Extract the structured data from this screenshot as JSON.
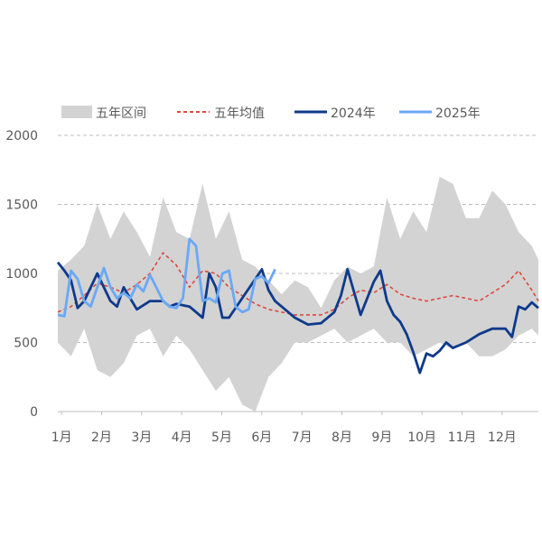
{
  "legend": {
    "range_label": "五年区间",
    "mean_label": "五年均值",
    "y2024_label": "2024年",
    "y2025_label": "2025年"
  },
  "colors": {
    "range_fill": "#d3d3d3",
    "mean_line": "#d94a3d",
    "y2024_line": "#0f3a8a",
    "y2025_line": "#6aa8f5",
    "grid": "#bdbdbd",
    "axis_text": "#595959"
  },
  "chart_data": {
    "type": "line",
    "title": "",
    "xlabel": "",
    "ylabel": "",
    "ylim": [
      0,
      2000
    ],
    "xlim": [
      0,
      365
    ],
    "y_ticks": [
      "0",
      "500",
      "1000",
      "1500",
      "2000"
    ],
    "x_tick_labels": [
      "1月",
      "2月",
      "3月",
      "4月",
      "5月",
      "6月",
      "7月",
      "8月",
      "9月",
      "10月",
      "11月",
      "12月"
    ],
    "grid": "horizontal-dashed",
    "legend_position": "top",
    "range_band": {
      "name": "五年区间",
      "x": [
        0,
        10,
        20,
        30,
        40,
        50,
        60,
        70,
        80,
        90,
        100,
        110,
        120,
        130,
        140,
        150,
        160,
        170,
        180,
        190,
        200,
        210,
        220,
        230,
        240,
        250,
        260,
        270,
        280,
        290,
        300,
        310,
        320,
        330,
        340,
        350,
        360,
        365
      ],
      "upper": [
        1020,
        1100,
        1200,
        1500,
        1250,
        1450,
        1300,
        1120,
        1550,
        1300,
        1250,
        1650,
        1250,
        1450,
        1100,
        1050,
        950,
        850,
        950,
        900,
        750,
        950,
        1050,
        1000,
        1050,
        1550,
        1250,
        1450,
        1300,
        1700,
        1650,
        1400,
        1400,
        1600,
        1500,
        1300,
        1200,
        1100
      ],
      "lower": [
        500,
        400,
        600,
        300,
        250,
        350,
        550,
        600,
        400,
        550,
        450,
        300,
        150,
        250,
        50,
        0,
        250,
        350,
        500,
        500,
        550,
        600,
        500,
        550,
        600,
        500,
        500,
        400,
        450,
        500,
        450,
        500,
        400,
        400,
        450,
        550,
        600,
        550
      ]
    },
    "series": [
      {
        "name": "五年均值",
        "style": "dashed",
        "x": [
          0,
          10,
          20,
          30,
          40,
          50,
          60,
          70,
          80,
          90,
          100,
          110,
          120,
          130,
          140,
          150,
          160,
          170,
          180,
          190,
          200,
          210,
          220,
          230,
          240,
          250,
          260,
          270,
          280,
          290,
          300,
          310,
          320,
          330,
          340,
          350,
          360,
          365
        ],
        "values": [
          720,
          760,
          840,
          930,
          900,
          860,
          920,
          1000,
          1150,
          1060,
          900,
          1020,
          1000,
          900,
          840,
          780,
          740,
          720,
          700,
          700,
          700,
          740,
          820,
          880,
          860,
          920,
          850,
          820,
          800,
          820,
          840,
          820,
          800,
          860,
          920,
          1020,
          880,
          800
        ]
      },
      {
        "name": "2024年",
        "style": "solid",
        "x": [
          0,
          5,
          10,
          15,
          20,
          30,
          40,
          45,
          50,
          60,
          70,
          80,
          85,
          90,
          100,
          110,
          115,
          120,
          125,
          130,
          140,
          150,
          155,
          160,
          165,
          170,
          180,
          190,
          200,
          210,
          215,
          220,
          230,
          240,
          245,
          250,
          255,
          260,
          265,
          270,
          275,
          280,
          285,
          290,
          295,
          300,
          310,
          320,
          330,
          340,
          345,
          350,
          355,
          360,
          365
        ],
        "values": [
          1080,
          1020,
          950,
          750,
          800,
          1000,
          800,
          760,
          900,
          740,
          800,
          800,
          760,
          780,
          760,
          680,
          1000,
          900,
          680,
          680,
          820,
          960,
          1030,
          880,
          800,
          760,
          680,
          630,
          640,
          720,
          840,
          1030,
          700,
          940,
          1020,
          800,
          700,
          650,
          560,
          430,
          280,
          420,
          400,
          440,
          500,
          460,
          500,
          560,
          600,
          600,
          540,
          760,
          740,
          790,
          750
        ]
      },
      {
        "name": "2025年",
        "style": "solid",
        "x": [
          0,
          5,
          10,
          15,
          20,
          25,
          30,
          35,
          40,
          45,
          50,
          55,
          60,
          65,
          70,
          80,
          85,
          90,
          95,
          100,
          105,
          110,
          115,
          120,
          125,
          130,
          135,
          140,
          145,
          150,
          155,
          160,
          165
        ],
        "values": [
          700,
          690,
          1020,
          960,
          800,
          760,
          900,
          1040,
          900,
          820,
          860,
          820,
          920,
          870,
          990,
          800,
          760,
          750,
          820,
          1250,
          1200,
          800,
          820,
          790,
          1000,
          1020,
          760,
          720,
          740,
          960,
          980,
          930,
          1030
        ]
      }
    ]
  }
}
